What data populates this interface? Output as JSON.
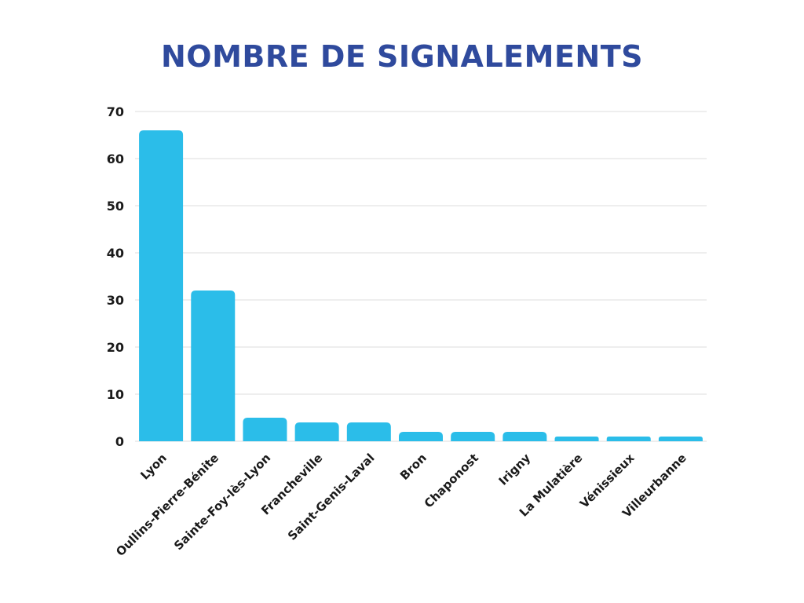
{
  "chart_data": {
    "type": "bar",
    "title": "NOMBRE DE SIGNALEMENTS",
    "xlabel": "",
    "ylabel": "",
    "categories": [
      "Lyon",
      "Oullins-Pierre-Bénite",
      "Sainte-Foy-lès-Lyon",
      "Francheville",
      "Saint-Genis-Laval",
      "Bron",
      "Chaponost",
      "Irigny",
      "La Mulatière",
      "Vénissieux",
      "Villeurbanne"
    ],
    "values": [
      66,
      32,
      5,
      4,
      4,
      2,
      2,
      2,
      1,
      1,
      1
    ],
    "ylim": [
      0,
      70
    ],
    "yticks": [
      "0",
      "10",
      "20",
      "30",
      "40",
      "50",
      "60",
      "70"
    ],
    "grid": true,
    "legend": "none",
    "colors": {
      "bar": "#2bbde9",
      "title": "#2f4a9d",
      "grid": "#dcdcdc",
      "text": "#1a1a1a"
    }
  }
}
